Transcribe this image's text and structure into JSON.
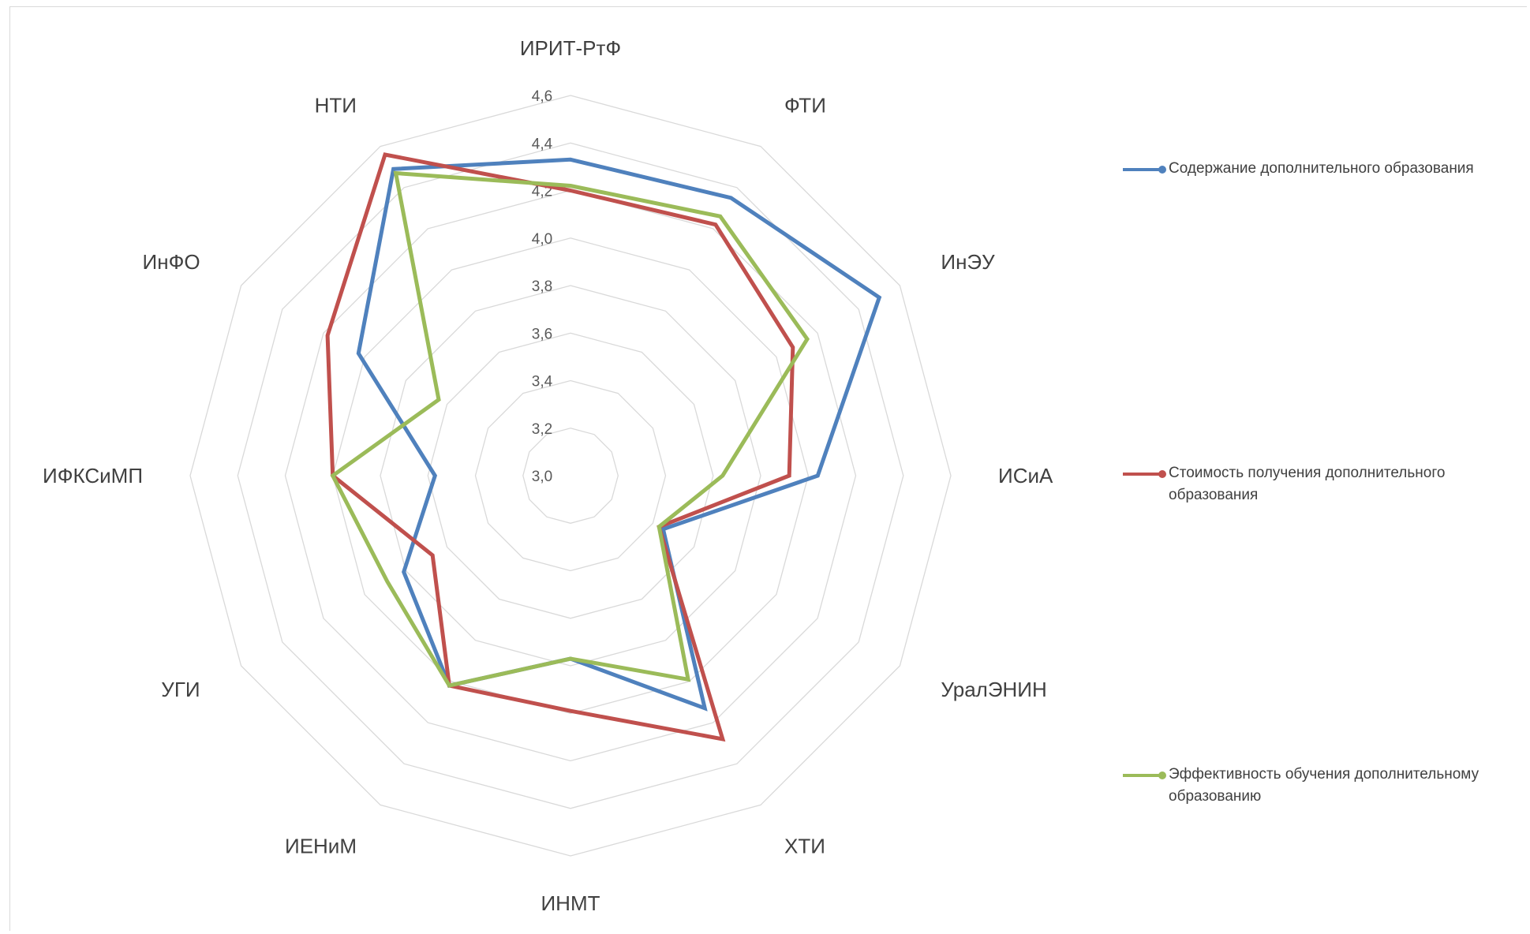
{
  "chart_data": {
    "type": "radar",
    "categories": [
      "ИРИТ-РтФ",
      "ФТИ",
      "ИнЭУ",
      "ИСиА",
      "УралЭНИН",
      "ХТИ",
      "ИНМТ",
      "ИЕНиМ",
      "УГИ",
      "ИФКСиМП",
      "ИнФО",
      "НТИ"
    ],
    "tick_labels": [
      "3,0",
      "3,2",
      "3,4",
      "3,6",
      "3,8",
      "4,0",
      "4,2",
      "4,4",
      "4,6"
    ],
    "rlim": [
      3.0,
      4.6
    ],
    "grid": true,
    "legend_position": "right",
    "series": [
      {
        "name": "Содержание дополнительного образования",
        "color": "#4F81BD",
        "values": [
          4.33,
          4.35,
          4.5,
          4.04,
          3.45,
          4.13,
          3.77,
          4.02,
          3.81,
          3.57,
          4.03,
          4.49
        ]
      },
      {
        "name": "Стоимость получения дополнительного образования",
        "color": "#C0504D",
        "values": [
          4.2,
          4.22,
          4.08,
          3.92,
          3.43,
          4.28,
          3.99,
          4.02,
          3.67,
          4.0,
          4.18,
          4.56
        ]
      },
      {
        "name": "Эффективность обучения дополнительному образованию",
        "color": "#9BBB59",
        "values": [
          4.22,
          4.26,
          4.15,
          3.64,
          3.43,
          3.99,
          3.77,
          4.02,
          3.89,
          4.0,
          3.64,
          4.47
        ]
      }
    ]
  }
}
